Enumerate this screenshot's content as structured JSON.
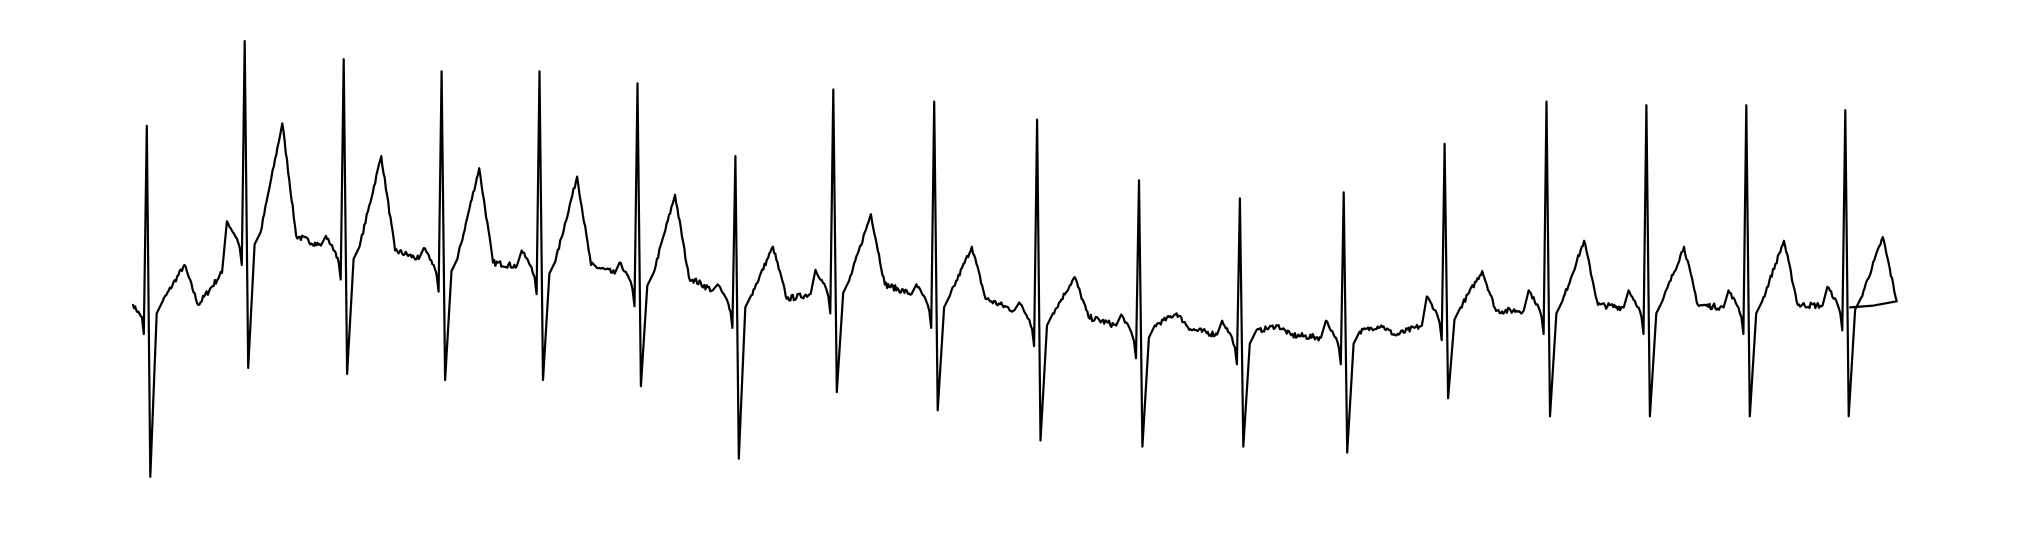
{
  "chart_data": {
    "type": "line",
    "title": "",
    "xlabel": "",
    "ylabel": "",
    "grid": false,
    "axes_visible": false,
    "legend": "none",
    "colors": {
      "line": "#000000",
      "background": "#ffffff"
    },
    "xlim": [
      0,
      18.5
    ],
    "ylim": [
      -1.5,
      2.3
    ],
    "series": [
      {
        "name": "",
        "beats": [
          {
            "t": 0.17,
            "r": 1.55,
            "s": -1.35,
            "t_wave": 0.35,
            "base": 0.05
          },
          {
            "t": 1.16,
            "r": 2.25,
            "s": -0.45,
            "t_wave": 0.95,
            "base": 0.62
          },
          {
            "t": 2.16,
            "r": 2.1,
            "s": -0.5,
            "t_wave": 0.8,
            "base": 0.5
          },
          {
            "t": 3.15,
            "r": 2.0,
            "s": -0.55,
            "t_wave": 0.8,
            "base": 0.4
          },
          {
            "t": 4.14,
            "r": 2.0,
            "s": -0.55,
            "t_wave": 0.75,
            "base": 0.38
          },
          {
            "t": 5.13,
            "r": 1.9,
            "s": -0.6,
            "t_wave": 0.7,
            "base": 0.28
          },
          {
            "t": 6.12,
            "r": 1.3,
            "s": -1.2,
            "t_wave": 0.45,
            "base": 0.1
          },
          {
            "t": 7.11,
            "r": 1.85,
            "s": -0.65,
            "t_wave": 0.6,
            "base": 0.22
          },
          {
            "t": 8.13,
            "r": 1.75,
            "s": -0.8,
            "t_wave": 0.45,
            "base": 0.1
          },
          {
            "t": 9.17,
            "r": 1.6,
            "s": -1.05,
            "t_wave": 0.35,
            "base": -0.05
          },
          {
            "t": 10.2,
            "r": 1.1,
            "s": -1.1,
            "t_wave": 0.15,
            "base": -0.15
          },
          {
            "t": 11.22,
            "r": 0.95,
            "s": -1.1,
            "t_wave": 0.1,
            "base": -0.2
          },
          {
            "t": 12.27,
            "r": 1.0,
            "s": -1.15,
            "t_wave": 0.1,
            "base": -0.2
          },
          {
            "t": 13.29,
            "r": 1.4,
            "s": -0.7,
            "t_wave": 0.35,
            "base": 0.0
          },
          {
            "t": 14.32,
            "r": 1.75,
            "s": -0.85,
            "t_wave": 0.55,
            "base": 0.05
          },
          {
            "t": 15.33,
            "r": 1.72,
            "s": -0.85,
            "t_wave": 0.5,
            "base": 0.05
          },
          {
            "t": 16.34,
            "r": 1.72,
            "s": -0.85,
            "t_wave": 0.55,
            "base": 0.05
          },
          {
            "t": 17.34,
            "r": 1.68,
            "s": -0.85,
            "t_wave": 0.55,
            "base": 0.08
          }
        ],
        "end": {
          "t": 17.4,
          "y": 0.05
        }
      }
    ]
  }
}
